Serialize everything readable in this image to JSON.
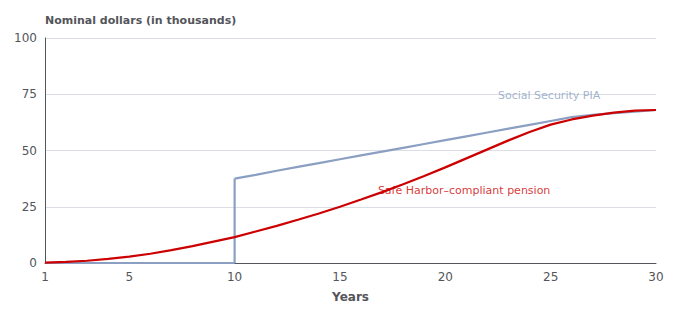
{
  "chart_data": {
    "type": "line",
    "ylabel": "Nominal dollars (in thousands)",
    "xlabel": "Years",
    "xlim": [
      1,
      30
    ],
    "ylim": [
      0,
      100
    ],
    "xticks": [
      1,
      5,
      10,
      15,
      20,
      25,
      30
    ],
    "yticks": [
      0,
      25,
      50,
      75,
      100
    ],
    "grid": true,
    "series": [
      {
        "color": "#8a9fc2",
        "x": [
          1,
          2,
          3,
          4,
          5,
          6,
          7,
          8,
          9,
          10
        ],
        "values": [
          0.0,
          0.0,
          0.0,
          0.0,
          0.0,
          0.0,
          0.0,
          0.0,
          0.0,
          0.0
        ]
      },
      {
        "color": "#8a9fc2",
        "x": [
          10,
          10
        ],
        "values": [
          0.0,
          37.5
        ]
      },
      {
        "color": "#8a9fc2",
        "x": [
          10,
          11,
          12,
          13,
          14,
          15,
          16,
          17,
          18,
          19,
          20,
          21,
          22,
          23,
          24,
          25,
          26,
          27,
          28,
          29,
          30
        ],
        "values": [
          37.5,
          39.2,
          41.0,
          42.7,
          44.4,
          46.1,
          47.8,
          49.5,
          51.2,
          52.9,
          54.6,
          56.3,
          58.0,
          59.7,
          61.4,
          63.1,
          64.8,
          65.8,
          66.6,
          67.3,
          68.0
        ]
      },
      {
        "color": "#cc0000",
        "x": [
          1,
          2,
          3,
          4,
          5,
          6,
          7,
          8,
          9,
          10,
          11,
          12,
          13,
          14,
          15,
          16,
          17,
          18,
          19,
          20,
          21,
          22,
          23,
          24,
          25,
          26,
          27,
          28,
          29,
          30
        ],
        "values": [
          0.2,
          0.5,
          1.0,
          1.8,
          2.8,
          4.1,
          5.7,
          7.5,
          9.5,
          11.5,
          14.0,
          16.5,
          19.2,
          22.0,
          25.0,
          28.2,
          31.5,
          35.0,
          38.7,
          42.5,
          46.5,
          50.5,
          54.5,
          58.2,
          61.5,
          63.8,
          65.5,
          66.8,
          67.7,
          68.0
        ]
      }
    ],
    "annotations": [
      {
        "text": "Social Security PIA",
        "x": 22.5,
        "y": 72,
        "color": "#8a9fc2"
      },
      {
        "text": "Safe Harbor–compliant pension",
        "x": 16.8,
        "y": 30,
        "color": "#cc0000"
      }
    ]
  }
}
